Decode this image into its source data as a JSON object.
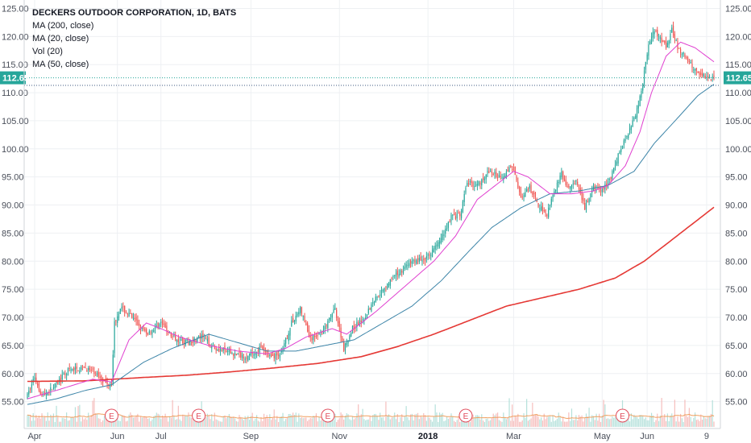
{
  "legend": {
    "title": "DECKERS OUTDOOR CORPORATION, 1D, BATS",
    "ma200": "MA (200, close)",
    "ma20": "MA (20, close)",
    "vol": "Vol (20)",
    "ma50": "MA (50, close)"
  },
  "colors": {
    "up": "#26a69a",
    "down": "#ef5350",
    "ma20": "#e040d0",
    "ma50": "#3d85a8",
    "ma200": "#e53935",
    "vol_ma": "#f0a060",
    "last_price": "#26a69a",
    "earnings": "#e04a5a"
  },
  "chart_data": {
    "type": "candlestick",
    "title": "DECKERS OUTDOOR CORPORATION, 1D, BATS",
    "ylim": [
      50.5,
      126.5
    ],
    "y_ticks": [
      "55.00",
      "60.00",
      "65.00",
      "70.00",
      "75.00",
      "80.00",
      "85.00",
      "90.00",
      "95.00",
      "100.00",
      "105.00",
      "110.00",
      "115.00",
      "120.00",
      "125.00"
    ],
    "x_ticks": [
      {
        "label": "Apr",
        "day": 5,
        "bold": false
      },
      {
        "label": "Jun",
        "day": 62,
        "bold": false
      },
      {
        "label": "Jul",
        "day": 92,
        "bold": false
      },
      {
        "label": "Sep",
        "day": 154,
        "bold": false
      },
      {
        "label": "Nov",
        "day": 215,
        "bold": false
      },
      {
        "label": "2018",
        "day": 276,
        "bold": true
      },
      {
        "label": "Mar",
        "day": 335,
        "bold": false
      },
      {
        "label": "May",
        "day": 396,
        "bold": false
      },
      {
        "label": "Jun",
        "day": 427,
        "bold": false
      },
      {
        "label": "9",
        "day": 468,
        "bold": false
      }
    ],
    "day_range": [
      0,
      473
    ],
    "last_price": "112.65",
    "last_price_value": 112.65,
    "dotted_level": 111.3,
    "earnings": [
      {
        "label": "E",
        "day": 58
      },
      {
        "label": "E",
        "day": 118
      },
      {
        "label": "E",
        "day": 207
      },
      {
        "label": "E",
        "day": 302
      },
      {
        "label": "E",
        "day": 410
      }
    ],
    "price_path": [
      [
        0,
        56.0
      ],
      [
        5,
        59.5
      ],
      [
        10,
        56.0
      ],
      [
        18,
        57.5
      ],
      [
        28,
        60.5
      ],
      [
        40,
        61.0
      ],
      [
        50,
        59.5
      ],
      [
        55,
        58.0
      ],
      [
        58,
        58.5
      ],
      [
        60,
        69.0
      ],
      [
        64,
        71.8
      ],
      [
        72,
        70.0
      ],
      [
        82,
        67.0
      ],
      [
        92,
        69.0
      ],
      [
        100,
        66.5
      ],
      [
        110,
        65.5
      ],
      [
        120,
        66.5
      ],
      [
        130,
        64.5
      ],
      [
        142,
        63.5
      ],
      [
        152,
        63.0
      ],
      [
        160,
        64.5
      ],
      [
        168,
        63.0
      ],
      [
        175,
        63.5
      ],
      [
        182,
        69.0
      ],
      [
        188,
        71.5
      ],
      [
        195,
        66.0
      ],
      [
        205,
        68.0
      ],
      [
        212,
        71.5
      ],
      [
        218,
        64.5
      ],
      [
        224,
        68.0
      ],
      [
        232,
        70.0
      ],
      [
        240,
        73.5
      ],
      [
        248,
        76.0
      ],
      [
        256,
        78.0
      ],
      [
        265,
        80.0
      ],
      [
        275,
        80.5
      ],
      [
        285,
        84.0
      ],
      [
        292,
        88.0
      ],
      [
        298,
        88.0
      ],
      [
        303,
        94.0
      ],
      [
        310,
        93.5
      ],
      [
        318,
        96.0
      ],
      [
        326,
        95.0
      ],
      [
        335,
        97.0
      ],
      [
        340,
        91.0
      ],
      [
        346,
        93.0
      ],
      [
        352,
        90.0
      ],
      [
        358,
        88.5
      ],
      [
        362,
        92.0
      ],
      [
        368,
        95.5
      ],
      [
        372,
        93.0
      ],
      [
        378,
        94.0
      ],
      [
        384,
        89.5
      ],
      [
        390,
        93.0
      ],
      [
        396,
        92.5
      ],
      [
        402,
        95.0
      ],
      [
        408,
        99.5
      ],
      [
        414,
        103.0
      ],
      [
        420,
        107.0
      ],
      [
        424,
        112.0
      ],
      [
        428,
        118.5
      ],
      [
        432,
        121.0
      ],
      [
        436,
        119.5
      ],
      [
        440,
        118.0
      ],
      [
        444,
        121.5
      ],
      [
        448,
        118.0
      ],
      [
        454,
        116.0
      ],
      [
        460,
        114.0
      ],
      [
        466,
        113.0
      ],
      [
        473,
        112.65
      ]
    ],
    "ma20": [
      [
        0,
        55.5
      ],
      [
        20,
        57.0
      ],
      [
        45,
        59.0
      ],
      [
        58,
        58.5
      ],
      [
        70,
        66.0
      ],
      [
        82,
        69.0
      ],
      [
        92,
        68.0
      ],
      [
        105,
        66.5
      ],
      [
        125,
        65.0
      ],
      [
        145,
        64.0
      ],
      [
        165,
        63.5
      ],
      [
        178,
        64.5
      ],
      [
        192,
        66.5
      ],
      [
        210,
        68.0
      ],
      [
        220,
        67.0
      ],
      [
        240,
        71.0
      ],
      [
        260,
        75.5
      ],
      [
        280,
        80.0
      ],
      [
        295,
        84.5
      ],
      [
        310,
        91.0
      ],
      [
        325,
        94.0
      ],
      [
        335,
        96.0
      ],
      [
        345,
        95.0
      ],
      [
        360,
        92.0
      ],
      [
        375,
        92.0
      ],
      [
        390,
        92.5
      ],
      [
        400,
        93.5
      ],
      [
        412,
        97.0
      ],
      [
        422,
        103.0
      ],
      [
        430,
        110.0
      ],
      [
        440,
        116.5
      ],
      [
        450,
        119.0
      ],
      [
        460,
        118.0
      ],
      [
        473,
        115.5
      ]
    ],
    "ma50": [
      [
        0,
        54.5
      ],
      [
        20,
        55.5
      ],
      [
        40,
        57.0
      ],
      [
        58,
        58.0
      ],
      [
        80,
        62.0
      ],
      [
        100,
        64.5
      ],
      [
        125,
        67.0
      ],
      [
        145,
        65.5
      ],
      [
        165,
        64.0
      ],
      [
        185,
        64.0
      ],
      [
        205,
        65.0
      ],
      [
        225,
        66.0
      ],
      [
        245,
        69.0
      ],
      [
        265,
        72.0
      ],
      [
        285,
        76.5
      ],
      [
        305,
        82.0
      ],
      [
        320,
        86.0
      ],
      [
        340,
        89.5
      ],
      [
        360,
        92.0
      ],
      [
        380,
        92.5
      ],
      [
        400,
        93.5
      ],
      [
        418,
        96.0
      ],
      [
        432,
        101.0
      ],
      [
        448,
        105.5
      ],
      [
        462,
        109.5
      ],
      [
        473,
        111.5
      ]
    ],
    "ma200": [
      [
        0,
        58.6
      ],
      [
        40,
        58.7
      ],
      [
        60,
        59.0
      ],
      [
        80,
        59.3
      ],
      [
        110,
        59.7
      ],
      [
        140,
        60.3
      ],
      [
        170,
        61.0
      ],
      [
        200,
        61.8
      ],
      [
        230,
        63.0
      ],
      [
        255,
        64.8
      ],
      [
        280,
        67.0
      ],
      [
        305,
        69.5
      ],
      [
        330,
        72.0
      ],
      [
        355,
        73.5
      ],
      [
        380,
        75.0
      ],
      [
        405,
        77.0
      ],
      [
        425,
        80.0
      ],
      [
        445,
        84.0
      ],
      [
        460,
        87.0
      ],
      [
        473,
        89.6
      ]
    ]
  }
}
